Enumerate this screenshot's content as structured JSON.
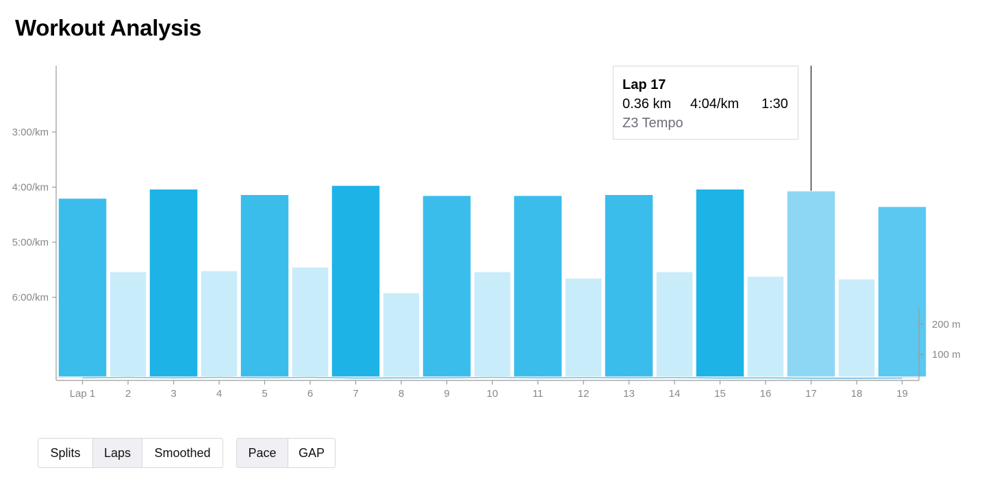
{
  "page": {
    "title": "Workout Analysis"
  },
  "chart_data": {
    "type": "bar",
    "categories": [
      "Lap 1",
      "2",
      "3",
      "4",
      "5",
      "6",
      "7",
      "8",
      "9",
      "10",
      "11",
      "12",
      "13",
      "14",
      "15",
      "16",
      "17",
      "18",
      "19"
    ],
    "y_pace_ticks": [
      "3:00/km",
      "4:00/km",
      "5:00/km",
      "6:00/km"
    ],
    "y_pace_tick_seconds": [
      180,
      240,
      300,
      360
    ],
    "y_elevation_ticks": [
      "200 m",
      "100 m"
    ],
    "y_elevation_tick_values": [
      200,
      100
    ],
    "pace_seconds_per_km": [
      252,
      332,
      242,
      331,
      248,
      327,
      238,
      355,
      249,
      332,
      249,
      339,
      248,
      332,
      242,
      337,
      244,
      340,
      261
    ],
    "elevation_m": [
      22,
      24,
      22,
      24,
      22,
      24,
      21,
      22,
      22,
      24,
      22,
      23,
      22,
      23,
      21,
      22,
      20,
      20,
      21
    ],
    "zone": [
      "Z3",
      "Z1",
      "Z4",
      "Z1",
      "Z3",
      "Z1",
      "Z4",
      "Z1",
      "Z3",
      "Z1",
      "Z3",
      "Z1",
      "Z3",
      "Z1",
      "Z4",
      "Z1",
      "Z3",
      "Z1",
      "Z2"
    ],
    "colors": {
      "Z1": "#c9ecfa",
      "Z2": "#5ac8f0",
      "Z3": "#3bbdec",
      "Z4": "#1eb3e6",
      "highlight": "#8dd6f4",
      "elevation": "#dcdcdc"
    },
    "highlighted_index": 16,
    "grid": false
  },
  "tooltip": {
    "title": "Lap 17",
    "distance": "0.36 km",
    "pace": "4:04/km",
    "time": "1:30",
    "zone": "Z3 Tempo"
  },
  "controls": {
    "view_tabs": [
      {
        "label": "Splits",
        "active": false
      },
      {
        "label": "Laps",
        "active": true
      },
      {
        "label": "Smoothed",
        "active": false
      }
    ],
    "metric_tabs": [
      {
        "label": "Pace",
        "active": true
      },
      {
        "label": "GAP",
        "active": false
      }
    ]
  }
}
